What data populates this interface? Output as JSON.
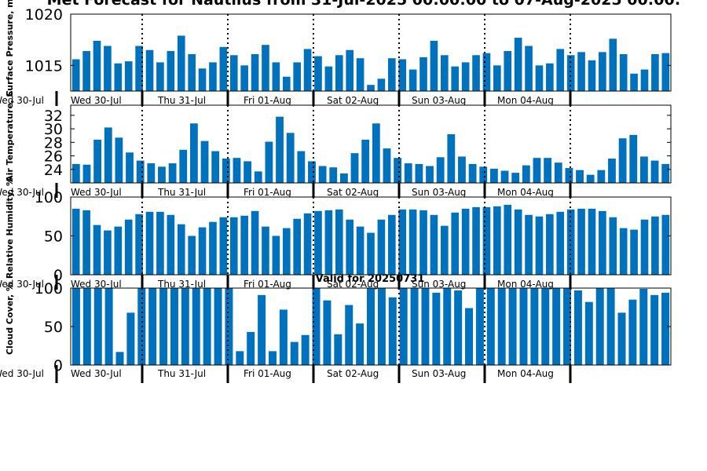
{
  "title": "Met Forecast for Nautilus from 31-Jul-2025 00:00:00 to 07-Aug-2025 00:00:",
  "valid_label": "Valid for 20250731",
  "colors": {
    "bar": "#0072bd",
    "axis": "#000000",
    "divider": "#000000"
  },
  "chart_data": [
    {
      "type": "bar",
      "ylabel": "Surface Pressure, mb",
      "ylim": [
        1012.5,
        1020
      ],
      "yticks": [
        1015,
        1020
      ],
      "categories_start": 0,
      "day_labels": [
        "Wed 30-Jul",
        "Thu 31-Jul",
        "Fri 01-Aug",
        "Sat 02-Aug",
        "Sun 03-Aug",
        "Mon 04-Aug"
      ],
      "values": [
        1015.6,
        1016.4,
        1017.4,
        1016.9,
        1015.2,
        1015.4,
        1016.9,
        1016.5,
        1015.3,
        1016.4,
        1017.9,
        1016.1,
        1014.7,
        1015.3,
        1016.8,
        1016.0,
        1015.0,
        1016.1,
        1017.0,
        1015.3,
        1013.9,
        1015.3,
        1016.6,
        1015.9,
        1014.9,
        1016.0,
        1016.5,
        1015.7,
        1013.1,
        1013.7,
        1015.7,
        1015.6,
        1014.6,
        1015.8,
        1017.4,
        1016.0,
        1014.9,
        1015.3,
        1016.0,
        1016.2,
        1015.0,
        1016.4,
        1017.7,
        1016.9,
        1015.0,
        1015.2,
        1016.6,
        1016.0,
        1016.3,
        1015.5,
        1016.3,
        1017.6,
        1016.1,
        1014.2,
        1014.6,
        1016.1,
        1016.2
      ]
    },
    {
      "type": "bar",
      "ylabel": "Air Temperature, C",
      "ylim": [
        22,
        33.5
      ],
      "yticks": [
        24,
        26,
        28,
        30,
        32
      ],
      "values": [
        24.8,
        24.7,
        28.4,
        30.2,
        28.7,
        26.5,
        25.3,
        24.9,
        24.4,
        24.9,
        26.9,
        30.8,
        28.2,
        26.7,
        25.6,
        25.7,
        25.2,
        23.7,
        28.1,
        31.8,
        29.4,
        26.7,
        25.2,
        24.5,
        24.3,
        23.4,
        26.4,
        28.4,
        30.8,
        27.1,
        25.7,
        24.9,
        24.8,
        24.5,
        25.8,
        29.2,
        25.9,
        24.8,
        24.4,
        24.1,
        23.8,
        23.5,
        24.6,
        25.7,
        25.7,
        25.0,
        24.2,
        23.9,
        23.2,
        23.9,
        25.6,
        28.6,
        29.1,
        25.9,
        25.3,
        24.8
      ]
    },
    {
      "type": "bar",
      "ylabel": "Relative Humidity, %",
      "ylim": [
        0,
        100
      ],
      "yticks": [
        0,
        50,
        100
      ],
      "values": [
        85,
        83,
        64,
        57,
        62,
        71,
        78,
        81,
        81,
        77,
        65,
        50,
        61,
        68,
        74,
        74,
        76,
        82,
        62,
        50,
        60,
        72,
        79,
        82,
        83,
        84,
        71,
        62,
        54,
        71,
        77,
        84,
        84,
        83,
        77,
        63,
        80,
        85,
        87,
        87,
        88,
        90,
        84,
        77,
        75,
        78,
        81,
        84,
        85,
        85,
        82,
        74,
        60,
        58,
        71,
        75,
        77
      ]
    },
    {
      "type": "bar",
      "ylabel": "Cloud Cover, %",
      "ylim": [
        0,
        100
      ],
      "yticks": [
        0,
        50,
        100
      ],
      "values": [
        100,
        100,
        100,
        100,
        17,
        68,
        100,
        100,
        100,
        100,
        100,
        100,
        100,
        100,
        100,
        18,
        43,
        91,
        18,
        72,
        30,
        39,
        100,
        84,
        40,
        78,
        54,
        100,
        100,
        88,
        100,
        100,
        100,
        94,
        100,
        97,
        74,
        100,
        100,
        100,
        100,
        100,
        100,
        100,
        100,
        100,
        97,
        82,
        100,
        100,
        68,
        85,
        99,
        91,
        94
      ]
    }
  ]
}
